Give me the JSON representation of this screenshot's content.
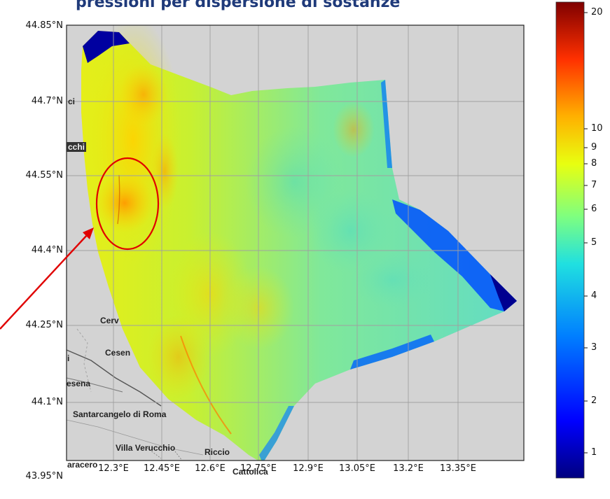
{
  "title": "pressioni per dispersione di sostanze",
  "lat_ticks": [
    "44.85°N",
    "44.7°N",
    "44.55°N",
    "44.4°N",
    "44.25°N",
    "44.1°N",
    "43.95°N"
  ],
  "lon_ticks": [
    "12.3°E",
    "12.45°E",
    "12.6°E",
    "12.75°E",
    "12.9°E",
    "13.05°E",
    "13.2°E",
    "13.35°E"
  ],
  "colorbar": {
    "ticks": [
      "20",
      "10",
      "9",
      "8",
      "7",
      "6",
      "5",
      "4",
      "3",
      "2",
      "1"
    ],
    "colormap": "jet",
    "scale": "log"
  },
  "places": {
    "p1": "ci",
    "p2": "cchi",
    "p3": "Cerv",
    "p4": "Cesen",
    "p5": "i",
    "p6": "esena",
    "p7": "Santarcangelo di Roma",
    "p8": "Villa Verucchio",
    "p9": "Riccio",
    "p10": "aracero",
    "p11": "Cattolica"
  },
  "colors": {
    "land": "#d3d3d3",
    "annotation": "#e00000",
    "title": "#1f3a7a"
  },
  "icons": [
    "red-arrow-icon",
    "ellipse-highlight-icon"
  ]
}
